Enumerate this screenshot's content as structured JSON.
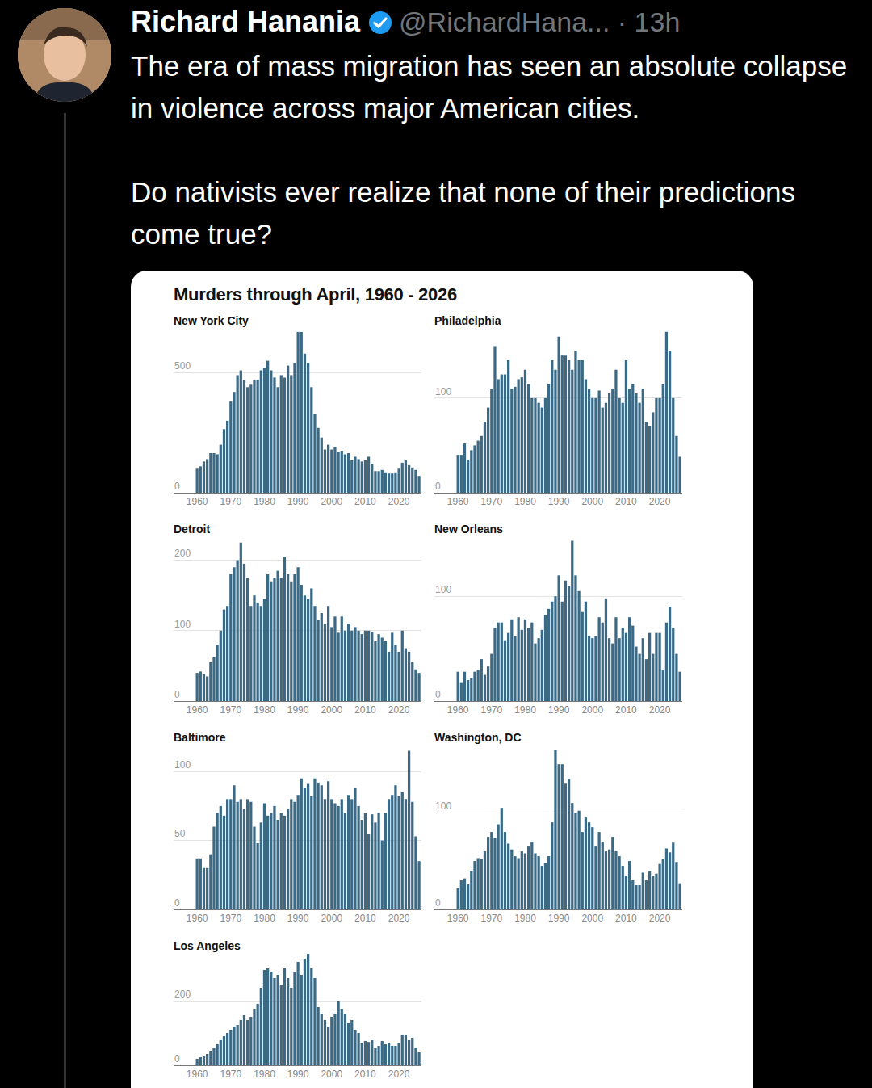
{
  "tweet": {
    "name": "Richard Hanania",
    "byline": "@RichardHana... · 13h",
    "text": [
      "The era of mass migration has seen an absolute collapse in violence across major American cities.",
      "Do nativists ever realize that none of their predictions come true?"
    ]
  },
  "figure_title": "Murders through April, 1960 - 2026",
  "chart_data": [
    {
      "type": "bar",
      "title": "New York City",
      "color": "#3a6a86",
      "grid": true,
      "x": [
        1960,
        1961,
        1962,
        1963,
        1964,
        1965,
        1966,
        1967,
        1968,
        1969,
        1970,
        1971,
        1972,
        1973,
        1974,
        1975,
        1976,
        1977,
        1978,
        1979,
        1980,
        1981,
        1982,
        1983,
        1984,
        1985,
        1986,
        1987,
        1988,
        1989,
        1990,
        1991,
        1992,
        1993,
        1994,
        1995,
        1996,
        1997,
        1998,
        1999,
        2000,
        2001,
        2002,
        2003,
        2004,
        2005,
        2006,
        2007,
        2008,
        2009,
        2010,
        2011,
        2012,
        2013,
        2014,
        2015,
        2016,
        2017,
        2018,
        2019,
        2020,
        2021,
        2022,
        2023,
        2024,
        2025,
        2026
      ],
      "values": [
        100,
        110,
        130,
        140,
        165,
        165,
        160,
        200,
        265,
        300,
        380,
        420,
        490,
        510,
        470,
        440,
        450,
        470,
        470,
        510,
        520,
        550,
        510,
        480,
        440,
        490,
        480,
        530,
        490,
        540,
        670,
        670,
        580,
        540,
        440,
        330,
        270,
        230,
        180,
        200,
        180,
        190,
        170,
        175,
        160,
        165,
        135,
        150,
        140,
        130,
        135,
        150,
        120,
        90,
        90,
        95,
        85,
        80,
        80,
        85,
        100,
        125,
        135,
        115,
        105,
        95,
        70
      ],
      "xlim": [
        1953,
        2026.7
      ],
      "xticks": [
        1960,
        1970,
        1980,
        1990,
        2000,
        2010,
        2020
      ],
      "ylim": [
        0,
        690
      ],
      "yticks": [
        0,
        500
      ]
    },
    {
      "type": "bar",
      "title": "Philadelphia",
      "color": "#3a6a86",
      "grid": true,
      "x": [
        1960,
        1961,
        1962,
        1963,
        1964,
        1965,
        1966,
        1967,
        1968,
        1969,
        1970,
        1971,
        1972,
        1973,
        1974,
        1975,
        1976,
        1977,
        1978,
        1979,
        1980,
        1981,
        1982,
        1983,
        1984,
        1985,
        1986,
        1987,
        1988,
        1989,
        1990,
        1991,
        1992,
        1993,
        1994,
        1995,
        1996,
        1997,
        1998,
        1999,
        2000,
        2001,
        2002,
        2003,
        2004,
        2005,
        2006,
        2007,
        2008,
        2009,
        2010,
        2011,
        2012,
        2013,
        2014,
        2015,
        2016,
        2017,
        2018,
        2019,
        2020,
        2021,
        2022,
        2023,
        2024,
        2025,
        2026
      ],
      "values": [
        40,
        40,
        52,
        35,
        45,
        50,
        55,
        60,
        75,
        90,
        110,
        155,
        120,
        125,
        125,
        140,
        110,
        112,
        120,
        122,
        130,
        115,
        100,
        100,
        95,
        90,
        100,
        115,
        140,
        130,
        165,
        145,
        145,
        140,
        130,
        150,
        140,
        140,
        120,
        110,
        100,
        100,
        108,
        90,
        95,
        105,
        110,
        130,
        100,
        95,
        140,
        110,
        115,
        105,
        95,
        110,
        75,
        70,
        85,
        100,
        100,
        115,
        170,
        150,
        100,
        60,
        38
      ],
      "xlim": [
        1953,
        2026.7
      ],
      "xticks": [
        1960,
        1970,
        1980,
        1990,
        2000,
        2010,
        2020
      ],
      "ylim": [
        0,
        175
      ],
      "yticks": [
        0,
        100
      ]
    },
    {
      "type": "bar",
      "title": "Detroit",
      "color": "#3a6a86",
      "grid": true,
      "x": [
        1960,
        1961,
        1962,
        1963,
        1964,
        1965,
        1966,
        1967,
        1968,
        1969,
        1970,
        1971,
        1972,
        1973,
        1974,
        1975,
        1976,
        1977,
        1978,
        1979,
        1980,
        1981,
        1982,
        1983,
        1984,
        1985,
        1986,
        1987,
        1988,
        1989,
        1990,
        1991,
        1992,
        1993,
        1994,
        1995,
        1996,
        1997,
        1998,
        1999,
        2000,
        2001,
        2002,
        2003,
        2004,
        2005,
        2006,
        2007,
        2008,
        2009,
        2010,
        2011,
        2012,
        2013,
        2014,
        2015,
        2016,
        2017,
        2018,
        2019,
        2020,
        2021,
        2022,
        2023,
        2024,
        2025,
        2026
      ],
      "values": [
        40,
        42,
        38,
        35,
        55,
        62,
        80,
        100,
        130,
        135,
        180,
        190,
        200,
        225,
        195,
        175,
        135,
        150,
        140,
        135,
        145,
        180,
        170,
        175,
        185,
        175,
        205,
        180,
        170,
        180,
        190,
        165,
        150,
        145,
        160,
        135,
        115,
        125,
        110,
        135,
        105,
        120,
        97,
        120,
        100,
        110,
        100,
        105,
        100,
        95,
        100,
        100,
        98,
        85,
        95,
        90,
        85,
        70,
        97,
        80,
        70,
        100,
        75,
        70,
        55,
        45,
        40
      ],
      "xlim": [
        1953,
        2026.7
      ],
      "xticks": [
        1960,
        1970,
        1980,
        1990,
        2000,
        2010,
        2020
      ],
      "ylim": [
        0,
        235
      ],
      "yticks": [
        0,
        100,
        200
      ]
    },
    {
      "type": "bar",
      "title": "New Orleans",
      "color": "#3a6a86",
      "grid": true,
      "x": [
        1960,
        1961,
        1962,
        1963,
        1964,
        1965,
        1966,
        1967,
        1968,
        1969,
        1970,
        1971,
        1972,
        1973,
        1974,
        1975,
        1976,
        1977,
        1978,
        1979,
        1980,
        1981,
        1982,
        1983,
        1984,
        1985,
        1986,
        1987,
        1988,
        1989,
        1990,
        1991,
        1992,
        1993,
        1994,
        1995,
        1996,
        1997,
        1998,
        1999,
        2000,
        2001,
        2002,
        2003,
        2004,
        2005,
        2006,
        2007,
        2008,
        2009,
        2010,
        2011,
        2012,
        2013,
        2014,
        2015,
        2016,
        2017,
        2018,
        2019,
        2020,
        2021,
        2022,
        2023,
        2024,
        2025,
        2026
      ],
      "values": [
        28,
        18,
        28,
        20,
        22,
        28,
        30,
        40,
        25,
        33,
        45,
        70,
        75,
        75,
        58,
        65,
        78,
        62,
        80,
        68,
        78,
        70,
        75,
        55,
        60,
        68,
        82,
        88,
        95,
        100,
        120,
        95,
        115,
        110,
        153,
        120,
        105,
        85,
        95,
        62,
        60,
        62,
        80,
        75,
        98,
        60,
        55,
        80,
        60,
        70,
        65,
        80,
        72,
        52,
        45,
        60,
        40,
        65,
        45,
        65,
        65,
        30,
        75,
        90,
        70,
        45,
        28
      ],
      "xlim": [
        1953,
        2026.7
      ],
      "xticks": [
        1960,
        1970,
        1980,
        1990,
        2000,
        2010,
        2020
      ],
      "ylim": [
        0,
        158
      ],
      "yticks": [
        0,
        100
      ]
    },
    {
      "type": "bar",
      "title": "Baltimore",
      "color": "#3a6a86",
      "grid": true,
      "x": [
        1960,
        1961,
        1962,
        1963,
        1964,
        1965,
        1966,
        1967,
        1968,
        1969,
        1970,
        1971,
        1972,
        1973,
        1974,
        1975,
        1976,
        1977,
        1978,
        1979,
        1980,
        1981,
        1982,
        1983,
        1984,
        1985,
        1986,
        1987,
        1988,
        1989,
        1990,
        1991,
        1992,
        1993,
        1994,
        1995,
        1996,
        1997,
        1998,
        1999,
        2000,
        2001,
        2002,
        2003,
        2004,
        2005,
        2006,
        2007,
        2008,
        2009,
        2010,
        2011,
        2012,
        2013,
        2014,
        2015,
        2016,
        2017,
        2018,
        2019,
        2020,
        2021,
        2022,
        2023,
        2024,
        2025,
        2026
      ],
      "values": [
        37,
        37,
        30,
        30,
        40,
        60,
        70,
        75,
        68,
        80,
        80,
        90,
        78,
        80,
        73,
        80,
        78,
        60,
        48,
        63,
        77,
        68,
        70,
        75,
        65,
        70,
        68,
        73,
        80,
        78,
        83,
        95,
        88,
        91,
        82,
        95,
        92,
        90,
        80,
        93,
        80,
        77,
        75,
        80,
        70,
        83,
        80,
        88,
        75,
        65,
        70,
        55,
        69,
        63,
        70,
        50,
        70,
        80,
        83,
        90,
        82,
        85,
        80,
        115,
        78,
        53,
        35
      ],
      "xlim": [
        1953,
        2026.7
      ],
      "xticks": [
        1960,
        1970,
        1980,
        1990,
        2000,
        2010,
        2020
      ],
      "ylim": [
        0,
        120
      ],
      "yticks": [
        0,
        50,
        100
      ]
    },
    {
      "type": "bar",
      "title": "Washington, DC",
      "color": "#3a6a86",
      "grid": true,
      "x": [
        1960,
        1961,
        1962,
        1963,
        1964,
        1965,
        1966,
        1967,
        1968,
        1969,
        1970,
        1971,
        1972,
        1973,
        1974,
        1975,
        1976,
        1977,
        1978,
        1979,
        1980,
        1981,
        1982,
        1983,
        1984,
        1985,
        1986,
        1987,
        1988,
        1989,
        1990,
        1991,
        1992,
        1993,
        1994,
        1995,
        1996,
        1997,
        1998,
        1999,
        2000,
        2001,
        2002,
        2003,
        2004,
        2005,
        2006,
        2007,
        2008,
        2009,
        2010,
        2011,
        2012,
        2013,
        2014,
        2015,
        2016,
        2017,
        2018,
        2019,
        2020,
        2021,
        2022,
        2023,
        2024,
        2025,
        2026
      ],
      "values": [
        22,
        30,
        32,
        26,
        40,
        50,
        53,
        52,
        60,
        75,
        80,
        74,
        88,
        105,
        80,
        68,
        62,
        55,
        53,
        60,
        58,
        65,
        70,
        58,
        55,
        45,
        48,
        55,
        90,
        165,
        150,
        150,
        130,
        135,
        110,
        100,
        102,
        80,
        95,
        90,
        85,
        65,
        80,
        70,
        60,
        62,
        75,
        60,
        55,
        45,
        35,
        50,
        30,
        25,
        25,
        38,
        30,
        40,
        35,
        37,
        47,
        52,
        63,
        59,
        69,
        49,
        27
      ],
      "xlim": [
        1953,
        2026.7
      ],
      "xticks": [
        1960,
        1970,
        1980,
        1990,
        2000,
        2010,
        2020
      ],
      "ylim": [
        0,
        171
      ],
      "yticks": [
        0,
        100
      ]
    },
    {
      "type": "bar",
      "title": "Los Angeles",
      "color": "#3a6a86",
      "grid": true,
      "x": [
        1960,
        1961,
        1962,
        1963,
        1964,
        1965,
        1966,
        1967,
        1968,
        1969,
        1970,
        1971,
        1972,
        1973,
        1974,
        1975,
        1976,
        1977,
        1978,
        1979,
        1980,
        1981,
        1982,
        1983,
        1984,
        1985,
        1986,
        1987,
        1988,
        1989,
        1990,
        1991,
        1992,
        1993,
        1994,
        1995,
        1996,
        1997,
        1998,
        1999,
        2000,
        2001,
        2002,
        2003,
        2004,
        2005,
        2006,
        2007,
        2008,
        2009,
        2010,
        2011,
        2012,
        2013,
        2014,
        2015,
        2016,
        2017,
        2018,
        2019,
        2020,
        2021,
        2022,
        2023,
        2024,
        2025,
        2026
      ],
      "values": [
        20,
        25,
        30,
        35,
        45,
        55,
        65,
        80,
        90,
        100,
        110,
        120,
        125,
        140,
        155,
        140,
        150,
        175,
        190,
        240,
        295,
        300,
        290,
        270,
        280,
        250,
        300,
        270,
        240,
        290,
        320,
        280,
        330,
        345,
        300,
        270,
        180,
        160,
        140,
        120,
        150,
        160,
        200,
        175,
        160,
        130,
        140,
        110,
        100,
        70,
        75,
        72,
        80,
        55,
        60,
        75,
        65,
        70,
        60,
        60,
        70,
        95,
        95,
        80,
        85,
        55,
        40
      ],
      "xlim": [
        1953,
        2026.7
      ],
      "xticks": [
        1960,
        1970,
        1980,
        1990,
        2000,
        2010,
        2020
      ],
      "ylim": [
        0,
        350
      ],
      "yticks": [
        0,
        200
      ]
    }
  ]
}
